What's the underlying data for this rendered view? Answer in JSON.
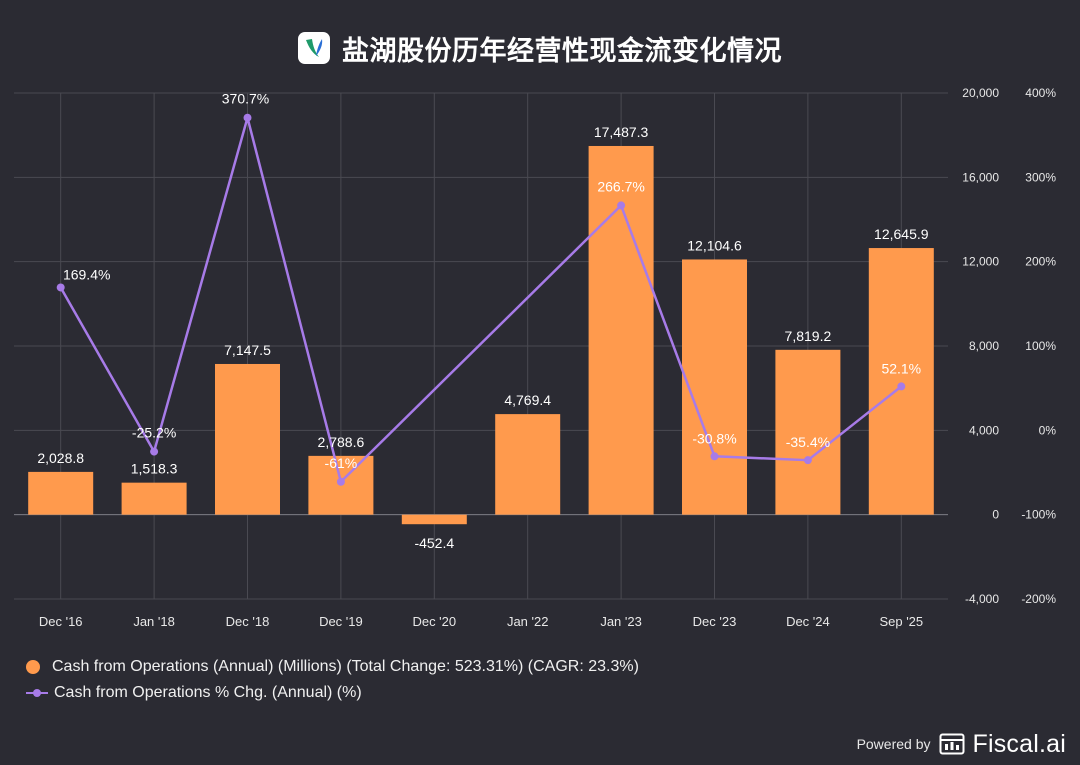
{
  "title": "盐湖股份历年经营性现金流变化情况",
  "logo": {
    "icon": "company-logo-icon"
  },
  "chart_data": {
    "type": "bar+line",
    "categories": [
      "Dec '16",
      "Jan '18",
      "Dec '18",
      "Dec '19",
      "Dec '20",
      "Jan '22",
      "Jan '23",
      "Dec '23",
      "Dec '24",
      "Sep '25"
    ],
    "series": [
      {
        "name": "Cash from Operations (Annual) (Millions) (Total Change: 523.31%) (CAGR: 23.3%)",
        "type": "bar",
        "axis": "left",
        "color": "#ff9a4d",
        "values": [
          2028.8,
          1518.3,
          7147.5,
          2788.6,
          -452.4,
          4769.4,
          17487.3,
          12104.6,
          7819.2,
          12645.9
        ],
        "labels": [
          "2,028.8",
          "1,518.3",
          "7,147.5",
          "2,788.6",
          "-452.4",
          "4,769.4",
          "17,487.3",
          "12,104.6",
          "7,819.2",
          "12,645.9"
        ]
      },
      {
        "name": "Cash from Operations % Chg. (Annual) (%)",
        "type": "line",
        "axis": "right",
        "color": "#a77be8",
        "values": [
          169.4,
          -25.2,
          370.7,
          -61,
          null,
          null,
          266.7,
          -30.8,
          -35.4,
          52.1
        ],
        "labels": [
          "169.4%",
          "-25.2%",
          "370.7%",
          "-61%",
          "",
          "",
          "266.7%",
          "-30.8%",
          "-35.4%",
          "52.1%"
        ]
      }
    ],
    "y_left": {
      "min": -4000,
      "max": 20000,
      "ticks": [
        -4000,
        0,
        4000,
        8000,
        12000,
        16000,
        20000
      ],
      "tick_labels": [
        "-4,000",
        "0",
        "4,000",
        "8,000",
        "12,000",
        "16,000",
        "20,000"
      ]
    },
    "y_right": {
      "min": -200,
      "max": 400,
      "ticks": [
        -200,
        -100,
        0,
        100,
        200,
        300,
        400
      ],
      "tick_labels": [
        "-200%",
        "-100%",
        "0%",
        "100%",
        "200%",
        "300%",
        "400%"
      ]
    },
    "grid": true,
    "legend_position": "bottom-left"
  },
  "legend": {
    "bar_label": "Cash from Operations (Annual) (Millions) (Total Change: 523.31%) (CAGR: 23.3%)",
    "line_label": "Cash from Operations % Chg. (Annual) (%)"
  },
  "footer": {
    "powered_by": "Powered by",
    "brand": "Fiscal.ai",
    "brand_icon": "fiscal-ai-logo-icon"
  },
  "colors": {
    "background": "#2b2b33",
    "bar": "#ff9a4d",
    "line": "#a77be8",
    "grid": "#4a4a52"
  }
}
